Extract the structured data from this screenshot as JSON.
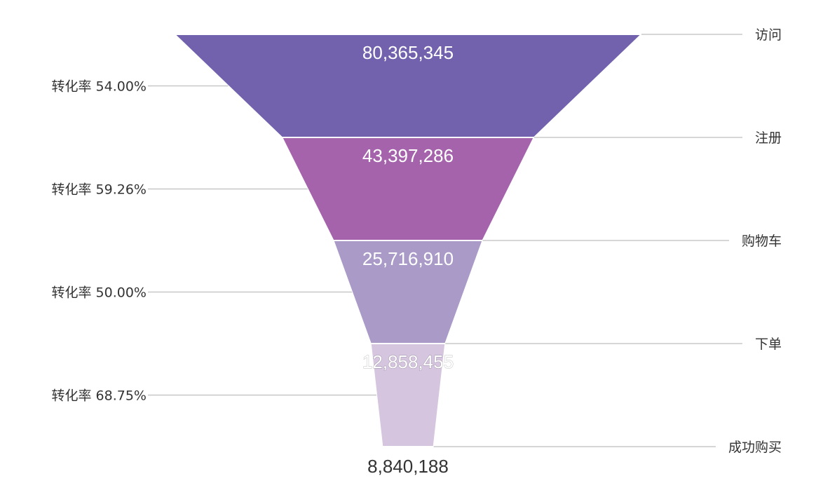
{
  "chart_data": {
    "type": "funnel",
    "stages": [
      {
        "name": "访问",
        "value": 80365345,
        "value_label": "80,365,345",
        "color": "#7261ad"
      },
      {
        "name": "注册",
        "value": 43397286,
        "value_label": "43,397,286",
        "color": "#a463ab"
      },
      {
        "name": "购物车",
        "value": 25716910,
        "value_label": "25,716,910",
        "color": "#a99ac8"
      },
      {
        "name": "下单",
        "value": 12858455,
        "value_label": "12,858,455",
        "color": "#d5c5df"
      },
      {
        "name": "成功购买",
        "value": 8840188,
        "value_label": "8,840,188",
        "color": "#d5c5df"
      }
    ],
    "conversion_rates": [
      {
        "label": "转化率 54.00%",
        "value": 54.0
      },
      {
        "label": "转化率 59.26%",
        "value": 59.26
      },
      {
        "label": "转化率 50.00%",
        "value": 50.0
      },
      {
        "label": "转化率 68.75%",
        "value": 68.75
      }
    ],
    "legend": "none"
  }
}
